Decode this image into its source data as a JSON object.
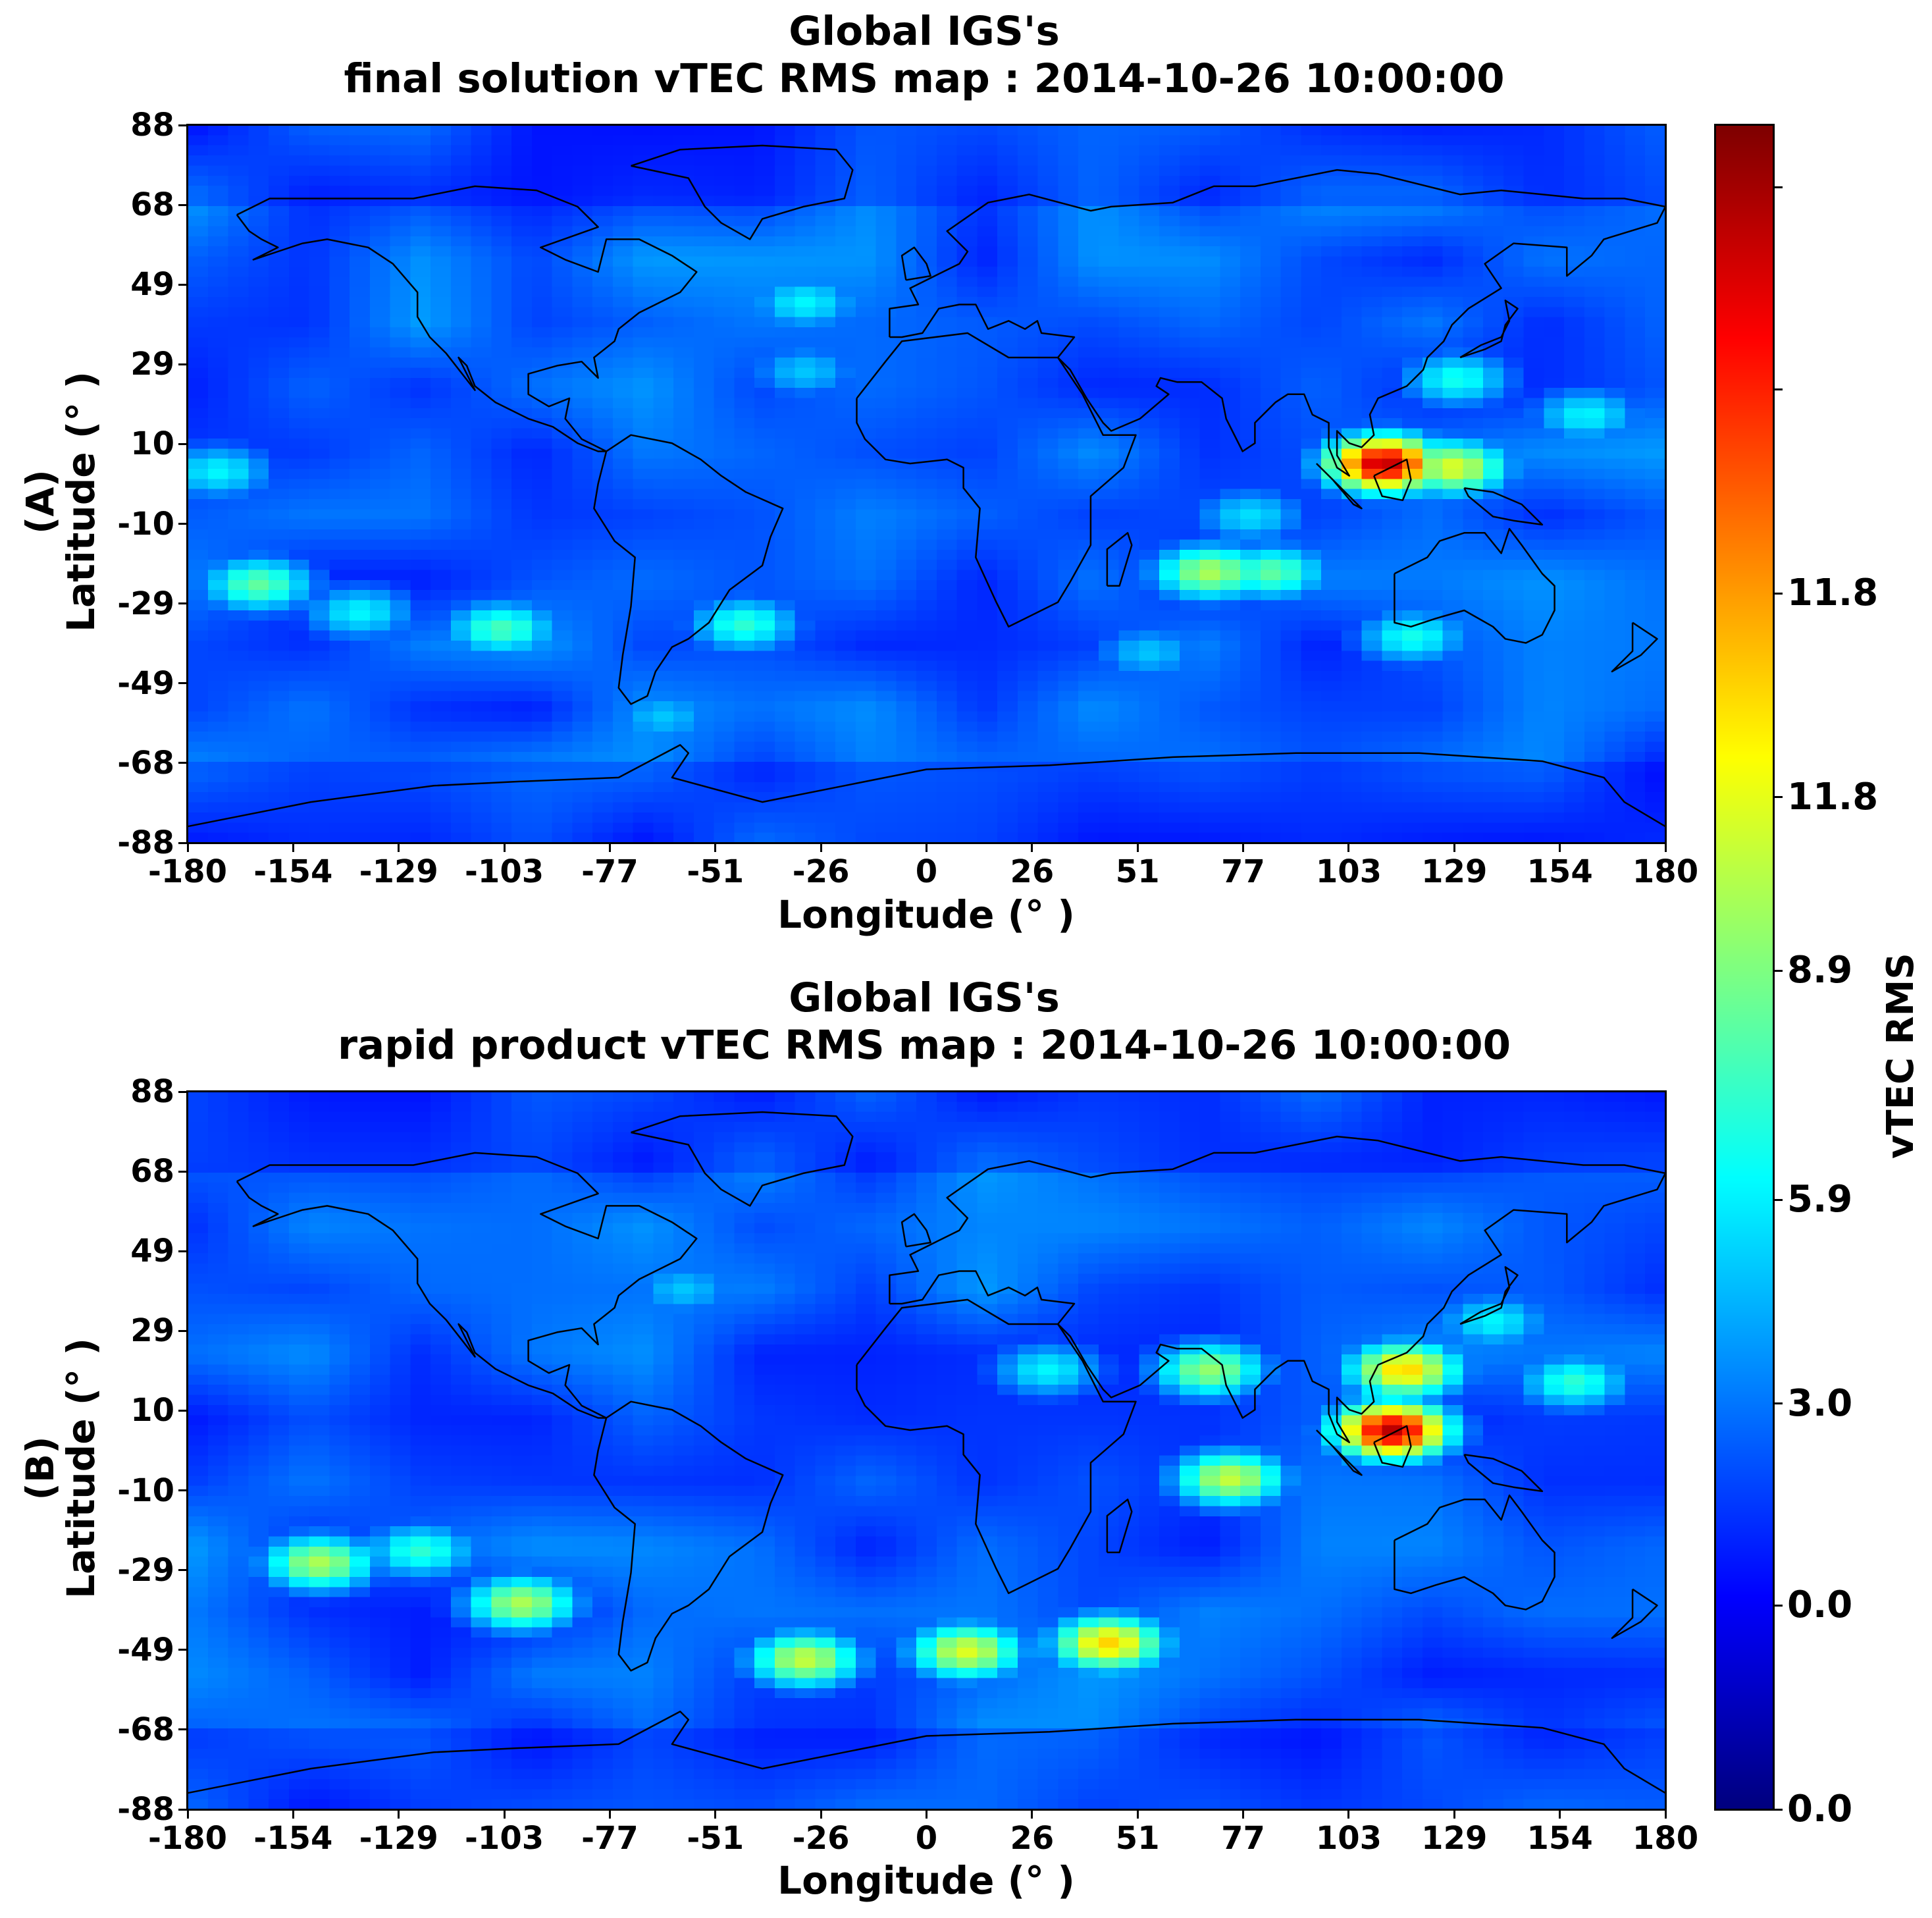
{
  "chart_data": [
    {
      "type": "heatmap",
      "panel_label": "(A)",
      "title": "Global IGS's",
      "subtitle": "final solution vTEC RMS map : 2014-10-26 10:00:00",
      "xlabel": "Longitude (° )",
      "ylabel": "Latitude (° )",
      "xlim": [
        -180,
        180
      ],
      "ylim": [
        -88,
        88
      ],
      "xticks": [
        "-180",
        "-154",
        "-129",
        "-103",
        "-77",
        "-51",
        "-26",
        "0",
        "26",
        "51",
        "77",
        "103",
        "129",
        "154",
        "180"
      ],
      "yticks": [
        "88",
        "68",
        "49",
        "29",
        "10",
        "-10",
        "-29",
        "-49",
        "-68",
        "-88"
      ],
      "hotspots": [
        {
          "lon": 113,
          "lat": 5,
          "value": 16.5
        },
        {
          "lon": 130,
          "lat": 4,
          "value": 9.5
        },
        {
          "lon": 131,
          "lat": 26,
          "value": 5.5
        },
        {
          "lon": 163,
          "lat": 17,
          "value": 5
        },
        {
          "lon": -175,
          "lat": 3,
          "value": 5
        },
        {
          "lon": 70,
          "lat": -22,
          "value": 8.5
        },
        {
          "lon": 85,
          "lat": -22,
          "value": 7
        },
        {
          "lon": 120,
          "lat": -38,
          "value": 5.5
        },
        {
          "lon": -165,
          "lat": -25,
          "value": 7
        },
        {
          "lon": -140,
          "lat": -32,
          "value": 5
        },
        {
          "lon": -105,
          "lat": -36,
          "value": 6.5
        },
        {
          "lon": -45,
          "lat": -35,
          "value": 6
        },
        {
          "lon": -65,
          "lat": -58,
          "value": 4
        },
        {
          "lon": -30,
          "lat": 45,
          "value": 5
        },
        {
          "lon": -30,
          "lat": 28,
          "value": 4
        },
        {
          "lon": 80,
          "lat": -8,
          "value": 4.5
        },
        {
          "lon": 55,
          "lat": -42,
          "value": 4
        }
      ]
    },
    {
      "type": "heatmap",
      "panel_label": "(B)",
      "title": "Global IGS's",
      "subtitle": "rapid product vTEC RMS map : 2014-10-26 10:00:00",
      "xlabel": "Longitude (° )",
      "ylabel": "Latitude (° )",
      "xlim": [
        -180,
        180
      ],
      "ylim": [
        -88,
        88
      ],
      "xticks": [
        "-180",
        "-154",
        "-129",
        "-103",
        "-77",
        "-51",
        "-26",
        "0",
        "26",
        "51",
        "77",
        "103",
        "129",
        "154",
        "180"
      ],
      "yticks": [
        "88",
        "68",
        "49",
        "29",
        "10",
        "-10",
        "-29",
        "-49",
        "-68",
        "-88"
      ],
      "hotspots": [
        {
          "lon": 115,
          "lat": 5,
          "value": 16.5
        },
        {
          "lon": 118,
          "lat": 20,
          "value": 11
        },
        {
          "lon": 75,
          "lat": -7,
          "value": 9
        },
        {
          "lon": 70,
          "lat": 20,
          "value": 8
        },
        {
          "lon": 30,
          "lat": 20,
          "value": 5
        },
        {
          "lon": 45,
          "lat": -48,
          "value": 11
        },
        {
          "lon": 10,
          "lat": -50,
          "value": 9.5
        },
        {
          "lon": -30,
          "lat": -52,
          "value": 9
        },
        {
          "lon": -100,
          "lat": -38,
          "value": 8.5
        },
        {
          "lon": -150,
          "lat": -28,
          "value": 8.5
        },
        {
          "lon": -125,
          "lat": -25,
          "value": 6
        },
        {
          "lon": 160,
          "lat": 17,
          "value": 6
        },
        {
          "lon": -60,
          "lat": 40,
          "value": 4
        },
        {
          "lon": 140,
          "lat": 32,
          "value": 5
        }
      ]
    }
  ],
  "colorbar": {
    "label": "vTEC RMS",
    "ticks": [
      "11.8",
      "11.8",
      "8.9",
      "5.9",
      "3.0",
      "0.0",
      "0.0"
    ],
    "vmin": 0,
    "vmax": 17.7
  }
}
